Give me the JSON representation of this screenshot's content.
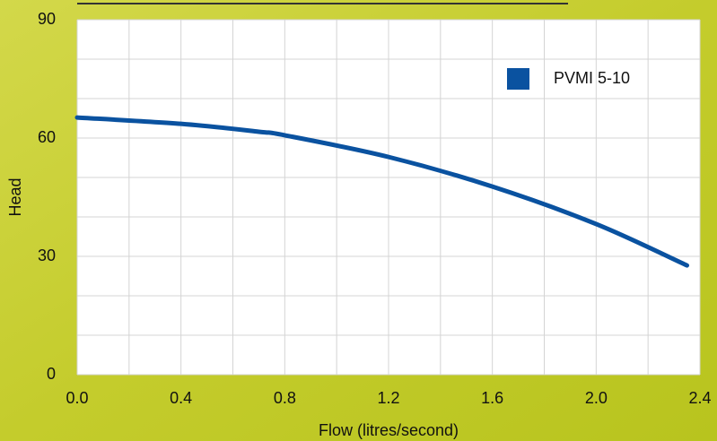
{
  "chart_data": {
    "type": "line",
    "x_label": "Flow (litres/second)",
    "y_label": "Head",
    "series": [
      {
        "name": "PVMI 5-10",
        "color": "#0a52a0",
        "x": [
          0,
          0.4,
          0.7,
          0.8,
          1.2,
          1.6,
          2.0,
          2.35
        ],
        "values": [
          65.2,
          63.6,
          61.6,
          60.7,
          55.2,
          47.7,
          38.2,
          27.7
        ]
      }
    ],
    "xlim": [
      0,
      2.4
    ],
    "ylim": [
      0,
      90
    ],
    "xticks": [
      {
        "value": 0,
        "label": "0.0"
      },
      0.4,
      0.8,
      1.2,
      1.6,
      {
        "value": 2,
        "label": "2.0"
      },
      2.4
    ],
    "yticks": [
      0,
      30,
      60,
      90
    ],
    "xgrid": [
      0,
      0.2,
      0.4,
      0.6,
      0.8,
      1,
      1.2,
      1.4,
      1.6,
      1.8,
      2,
      2.2,
      2.4
    ],
    "ygrid": [
      0,
      10,
      20,
      30,
      40,
      50,
      60,
      70,
      80,
      90
    ],
    "grid": true,
    "legend": "upper right"
  }
}
